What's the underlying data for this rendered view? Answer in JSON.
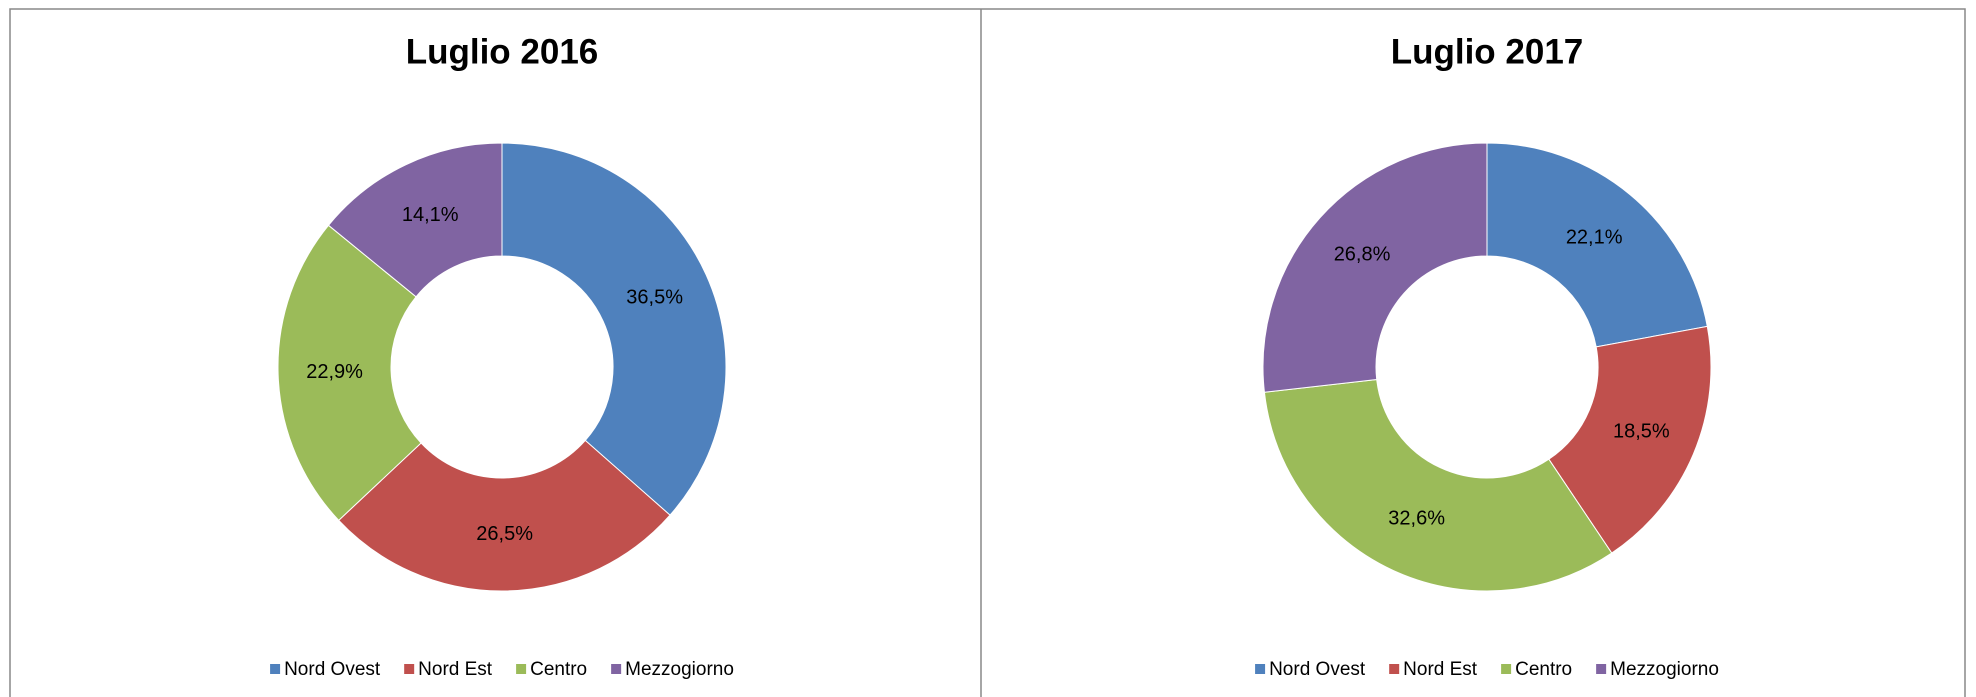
{
  "chart_data": [
    {
      "type": "donut",
      "title": "Luglio 2016",
      "categories": [
        "Nord Ovest",
        "Nord Est",
        "Centro",
        "Mezzogiorno"
      ],
      "values": [
        36.5,
        26.5,
        22.9,
        14.1
      ],
      "value_labels": [
        "36,5%",
        "26,5%",
        "22,9%",
        "14,1%"
      ],
      "colors": [
        "#4f81bd",
        "#c0504d",
        "#9bbb59",
        "#8064a2"
      ],
      "legend": "bottom"
    },
    {
      "type": "donut",
      "title": "Luglio 2017",
      "categories": [
        "Nord Ovest",
        "Nord Est",
        "Centro",
        "Mezzogiorno"
      ],
      "values": [
        22.1,
        18.5,
        32.6,
        26.8
      ],
      "value_labels": [
        "22,1%",
        "18,5%",
        "32,6%",
        "26,8%"
      ],
      "colors": [
        "#4f81bd",
        "#c0504d",
        "#9bbb59",
        "#8064a2"
      ],
      "legend": "bottom"
    }
  ]
}
